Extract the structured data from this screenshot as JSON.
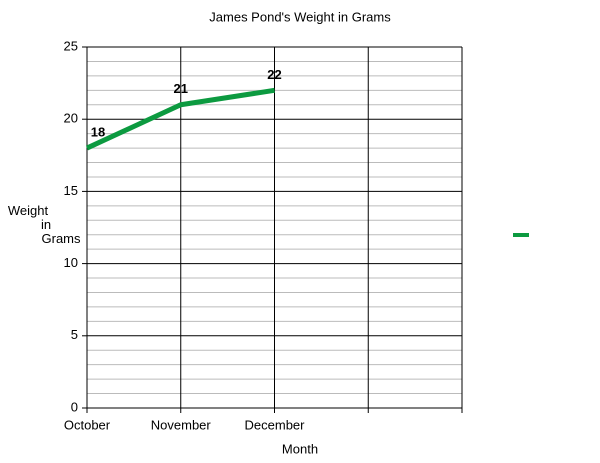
{
  "chart_data": {
    "type": "line",
    "title": "James Pond's Weight in Grams",
    "xlabel": "Month",
    "ylabel": "Weight in Grams",
    "categories": [
      "October",
      "November",
      "December",
      null,
      null
    ],
    "series": [
      {
        "color": "#0c9a40",
        "values": [
          18,
          21,
          22,
          null,
          null
        ]
      }
    ],
    "ylim": [
      0,
      25
    ],
    "yticks": [
      0,
      5,
      10,
      15,
      20,
      25
    ],
    "grid": true,
    "legend": "right"
  }
}
